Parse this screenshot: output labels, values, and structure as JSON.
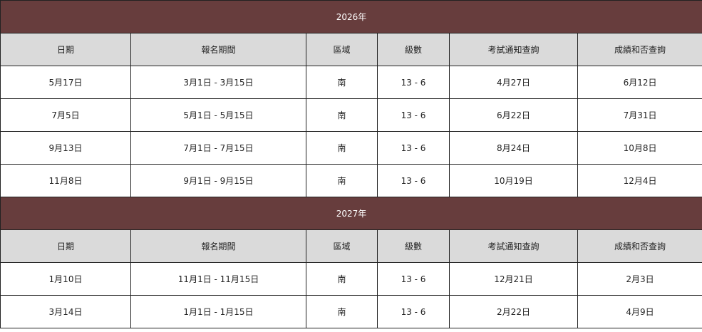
{
  "colors": {
    "year_band": "#673d3d",
    "header_bg": "#dadada"
  },
  "headers": [
    "日期",
    "報名期間",
    "區域",
    "級數",
    "考試通知查詢",
    "成績和否查詢"
  ],
  "sections": [
    {
      "year": "2026年",
      "rows": [
        [
          "5月17日",
          "3月1日 - 3月15日",
          "南",
          "13 - 6",
          "4月27日",
          "6月12日"
        ],
        [
          "7月5日",
          "5月1日 - 5月15日",
          "南",
          "13 - 6",
          "6月22日",
          "7月31日"
        ],
        [
          "9月13日",
          "7月1日 - 7月15日",
          "南",
          "13 - 6",
          "8月24日",
          "10月8日"
        ],
        [
          "11月8日",
          "9月1日 - 9月15日",
          "南",
          "13 - 6",
          "10月19日",
          "12月4日"
        ]
      ]
    },
    {
      "year": "2027年",
      "rows": [
        [
          "1月10日",
          "11月1日 - 11月15日",
          "南",
          "13 - 6",
          "12月21日",
          "2月3日"
        ],
        [
          "3月14日",
          "1月1日 - 1月15日",
          "南",
          "13 - 6",
          "2月22日",
          "4月9日"
        ]
      ]
    }
  ]
}
